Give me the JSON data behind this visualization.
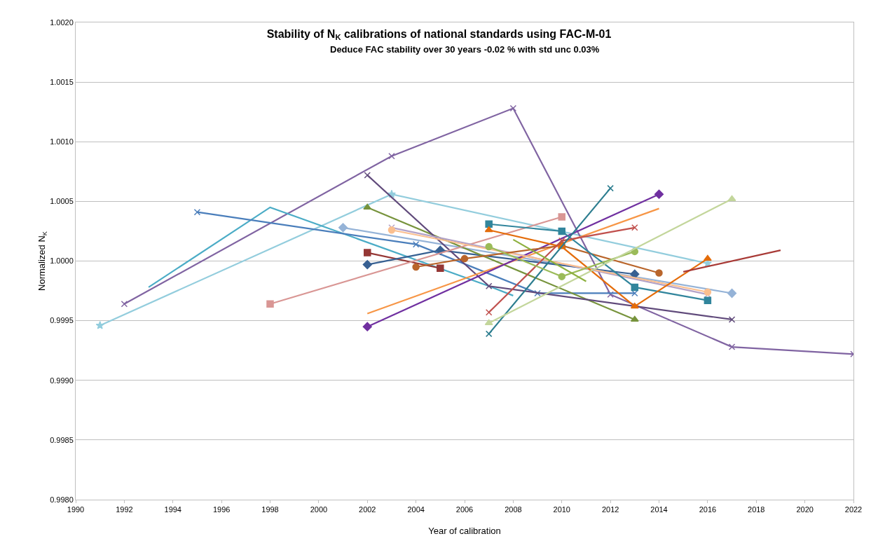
{
  "chart_data": {
    "type": "line",
    "title": "Stability of N$_{K}$ calibrations of national standards using FAC-M-01",
    "subtitle": "Deduce FAC stability over 30 years -0.02 % with std unc 0.03%",
    "xlabel": "Year of calibration",
    "ylabel": "Normalized N$_{K}$",
    "xlim": [
      1990,
      2022
    ],
    "xticks": [
      1990,
      1992,
      1994,
      1996,
      1998,
      2000,
      2002,
      2004,
      2006,
      2008,
      2010,
      2012,
      2014,
      2016,
      2018,
      2020,
      2022
    ],
    "ylim": [
      0.998,
      1.002
    ],
    "yticks": [
      {
        "value": 0.998,
        "label": "0.9980"
      },
      {
        "value": 0.9985,
        "label": "0.9985"
      },
      {
        "value": 0.999,
        "label": "0.9990"
      },
      {
        "value": 0.9995,
        "label": "0.9995"
      },
      {
        "value": 1.0,
        "label": "1.0000"
      },
      {
        "value": 1.0005,
        "label": "1.0005"
      },
      {
        "value": 1.001,
        "label": "1.0010"
      },
      {
        "value": 1.0015,
        "label": "1.0015"
      },
      {
        "value": 1.002,
        "label": "1.0020"
      }
    ],
    "grid": "y",
    "line_style": "solid",
    "series": [
      {
        "color": "#93cddd",
        "marker": "star",
        "x": [
          1991,
          2003,
          2016
        ],
        "values": [
          0.99946,
          1.00056,
          0.99998
        ]
      },
      {
        "color": "#8064a2",
        "marker": "cross",
        "x": [
          1992,
          2003,
          2008,
          2012,
          2017,
          2022
        ],
        "values": [
          0.99964,
          1.00088,
          1.00128,
          0.99972,
          0.99928,
          0.99922
        ]
      },
      {
        "color": "#4bacc6",
        "marker": "none",
        "x": [
          1993,
          1998,
          2007,
          2008
        ],
        "values": [
          0.99978,
          1.00045,
          0.99979,
          0.99971
        ]
      },
      {
        "color": "#4a7ebb",
        "marker": "cross",
        "x": [
          1995,
          2004,
          2009,
          2013
        ],
        "values": [
          1.00041,
          1.00014,
          0.99973,
          0.99973
        ]
      },
      {
        "color": "#95b3d7",
        "marker": "diamond",
        "x": [
          2001,
          2017
        ],
        "values": [
          1.00028,
          0.99973
        ]
      },
      {
        "color": "#953735",
        "marker": "square",
        "x": [
          2002,
          2005
        ],
        "values": [
          1.00007,
          0.99994
        ]
      },
      {
        "color": "#376092",
        "marker": "diamond",
        "x": [
          2002,
          2005,
          2013
        ],
        "values": [
          0.99997,
          1.00009,
          0.99989
        ]
      },
      {
        "color": "#77933c",
        "marker": "triangle",
        "x": [
          2002,
          2013
        ],
        "values": [
          1.00045,
          0.99951
        ]
      },
      {
        "color": "#604a7b",
        "marker": "cross",
        "x": [
          2002,
          2007,
          2017
        ],
        "values": [
          1.00072,
          0.99979,
          0.99951
        ]
      },
      {
        "color": "#f79646",
        "marker": "none",
        "x": [
          2002,
          2014
        ],
        "values": [
          0.99956,
          1.00044
        ]
      },
      {
        "color": "#7030a0",
        "marker": "diamond",
        "x": [
          2002,
          2014
        ],
        "values": [
          0.99945,
          1.00056
        ]
      },
      {
        "color": "#d99694",
        "marker": "square",
        "x": [
          1998,
          2010
        ],
        "values": [
          0.99964,
          1.00037
        ]
      },
      {
        "color": "#b3a2c7",
        "marker": "cross",
        "x": [
          2003,
          2016
        ],
        "values": [
          1.00028,
          0.99972
        ]
      },
      {
        "color": "#fabf8f",
        "marker": "circle",
        "x": [
          2003,
          2016
        ],
        "values": [
          1.00026,
          0.99974
        ]
      },
      {
        "color": "#b9652b",
        "marker": "circle",
        "x": [
          2004,
          2006,
          2010,
          2014
        ],
        "values": [
          0.99995,
          1.00002,
          1.00013,
          0.9999
        ]
      },
      {
        "color": "#31859c",
        "marker": "square",
        "x": [
          2007,
          2010,
          2013,
          2016
        ],
        "values": [
          1.00031,
          1.00025,
          0.99978,
          0.99967
        ]
      },
      {
        "color": "#e46c0a",
        "marker": "triangle",
        "x": [
          2007,
          2010,
          2013,
          2016
        ],
        "values": [
          1.00026,
          1.00012,
          0.99962,
          1.00002
        ]
      },
      {
        "color": "#c0504d",
        "marker": "cross",
        "x": [
          2007,
          2010,
          2013
        ],
        "values": [
          0.99957,
          1.00017,
          1.00028
        ]
      },
      {
        "color": "#2c7d8f",
        "marker": "cross",
        "x": [
          2007,
          2012
        ],
        "values": [
          0.99939,
          1.00061
        ]
      },
      {
        "color": "#9bbb59",
        "marker": "circle",
        "x": [
          2007,
          2010,
          2013
        ],
        "values": [
          1.00012,
          0.99987,
          1.00008
        ]
      },
      {
        "color": "#c3d69b",
        "marker": "triangle",
        "x": [
          2007,
          2017
        ],
        "values": [
          0.99948,
          1.00052
        ]
      },
      {
        "color": "#8db03f",
        "marker": "none",
        "x": [
          2008,
          2011
        ],
        "values": [
          1.00018,
          0.99983
        ]
      },
      {
        "color": "#a83a36",
        "marker": "none",
        "x": [
          2015,
          2019
        ],
        "values": [
          0.99991,
          1.00009
        ]
      }
    ]
  }
}
